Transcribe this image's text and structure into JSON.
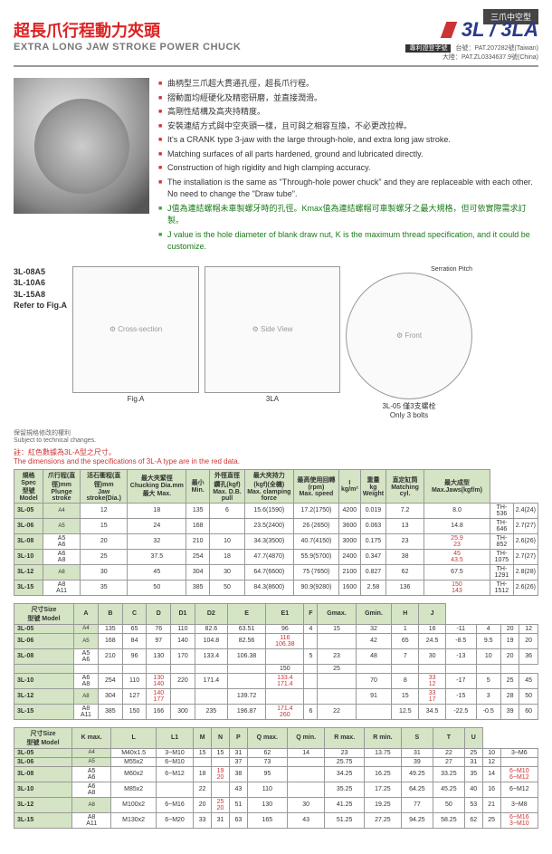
{
  "header": {
    "top_tag": "三爪中空型",
    "title_cn": "超長爪行程動力夾頭",
    "subtitle_en": "EXTRA LONG JAW STROKE POWER CHUCK",
    "model": "3L / 3LA",
    "patent_label": "專利證登字號",
    "patent_tw": "台號：PAT.207282號(Taiwan)",
    "patent_cn": "大陸：PAT.ZL0334637.9號(China)"
  },
  "features": {
    "cn": [
      "曲柄型三爪超大貫通孔徑，超長爪行程。",
      "摺動面均經硬化及精密研磨，並直接潤滑。",
      "高剛性結構及高夾持精度。",
      "安裝連結方式與中空夾頭一樣，且可與之相容互換，不必更改拉桿。"
    ],
    "en": [
      "It's a CRANK type 3-jaw with the large through-hole, and extra long jaw stroke.",
      "Matching surfaces of all parts hardened, ground and lubricated directly.",
      "Construction of high rigidity and high clamping accuracy.",
      "The installation is the same as \"Through-hole power chuck\" and they are replaceable with each other. No need to change the \"Draw tube\"."
    ],
    "green_cn": "J值為連結螺帽未車製螺牙時的孔徑。Kmax值為連結螺帽可車製螺牙之最大規格，但可依實際需求訂製。",
    "green_en": "J value is the hole diameter of blank draw nut, K is the maximum thread specification, and it could be customize."
  },
  "diagram": {
    "models": "3L-08A5\n3L-10A6\n3L-15A8\nRefer to Fig.A",
    "fig_a": "Fig.A",
    "label_3la": "3LA",
    "label_3l": "3L",
    "serration": "Serration Pitch",
    "serration_note": "齒距型1.5",
    "bolt_note": "3L-05 僅3支螺栓\nOnly 3 bolts",
    "tech_note": "保留規格修改的權利\nSubject to technical changes.",
    "red_note": "註：紅色數據為3L-A型之尺寸。\nThe dimensions and the specifications of 3L-A type are in the red data."
  },
  "table1": {
    "headers": [
      "規格 Spec\n型號 Model",
      "爪行程(直徑)mm\nPlunge stroke",
      "活石衝程(直徑)mm\nJaw stroke(Dia.)",
      "最大夾緊徑 Chucking Dia.mm\n最大 Max.",
      "最小 Min.",
      "外徑直徑鑽孔(kgf)\nMax. D.B. pull",
      "最大夾持力(kgf)(全機)\nMax. clamping force",
      "最高使用回轉(rpm)\nMax. speed",
      "I\nkg/m²",
      "重量 kg\nWeight",
      "直定缸筒\nMatching cyl.",
      "最大成型Max.Jaws(kgf/m)"
    ],
    "rows": [
      [
        "3L-05",
        "A4",
        "12",
        "18",
        "135",
        "6",
        "15.6(1590)",
        "17.2(1750)",
        "4200",
        "0.019",
        "7.2",
        "8.0",
        "TH-536",
        "2.4(24)"
      ],
      [
        "3L-06",
        "A5",
        "15",
        "24",
        "168",
        "",
        "23.5(2400)",
        "26 (2650)",
        "3600",
        "0.063",
        "13",
        "14.8",
        "TH-646",
        "2.7(27)"
      ],
      [
        "3L-08",
        "A5\nA6",
        "20",
        "32",
        "210",
        "10",
        "34.3(3500)",
        "40.7(4150)",
        "3000",
        "0.175",
        "23",
        "25.9\n23",
        "TH-852",
        "2.6(26)"
      ],
      [
        "3L-10",
        "A6\nA8",
        "25",
        "37.5",
        "254",
        "18",
        "47.7(4870)",
        "55.9(5700)",
        "2400",
        "0.347",
        "38",
        "45\n43.5",
        "TH-1075",
        "2.7(27)"
      ],
      [
        "3L-12",
        "A8",
        "30",
        "45",
        "304",
        "30",
        "64.7(6600)",
        "75 (7650)",
        "2100",
        "0.827",
        "62",
        "67.5",
        "TH-1291",
        "2.8(28)"
      ],
      [
        "3L-15",
        "A8\nA11",
        "35",
        "50",
        "385",
        "50",
        "84.3(8600)",
        "90.9(9280)",
        "1600",
        "2.58",
        "136",
        "150\n143",
        "TH-1512",
        "2.6(26)"
      ]
    ]
  },
  "table2": {
    "headers": [
      "尺寸Size\n型號 Model",
      "A",
      "B",
      "C",
      "D",
      "D1",
      "D2",
      "E",
      "E1",
      "F",
      "Gmax.",
      "Gmin.",
      "H",
      "J"
    ],
    "rows": [
      [
        "3L-05",
        "A4",
        "135",
        "65",
        "76",
        "110",
        "82.6",
        "63.51",
        "96",
        "4",
        "15",
        "32",
        "1",
        "16",
        "-11",
        "4",
        "20",
        "12"
      ],
      [
        "3L-06",
        "A5",
        "168",
        "84",
        "97",
        "140",
        "104.8",
        "82.56",
        "116\n106.38",
        "",
        "",
        "42",
        "65",
        "24.5",
        "-8.5",
        "9.5",
        "19",
        "20"
      ],
      [
        "3L-08",
        "A5\nA6",
        "210",
        "96",
        "130",
        "170",
        "133.4",
        "106.38",
        "",
        "5",
        "23",
        "48",
        "7",
        "30",
        "-13",
        "10",
        "20",
        "36"
      ],
      [
        "",
        "",
        "",
        "",
        "",
        "",
        "",
        "",
        "150",
        "",
        "25",
        "",
        "",
        "",
        "",
        "",
        ""
      ],
      [
        "3L-10",
        "A6\nA8",
        "254",
        "110",
        "130\n140",
        "220",
        "171.4",
        "",
        "133.4\n171.4",
        "",
        "",
        "70",
        "8",
        "33\n12",
        "-17",
        "5",
        "25",
        "45"
      ],
      [
        "3L-12",
        "A8",
        "304",
        "127",
        "140\n177",
        "",
        "",
        "139.72",
        "",
        "",
        "",
        "91",
        "15",
        "33\n17",
        "-15",
        "3",
        "28",
        "50"
      ],
      [
        "3L-15",
        "A8\nA11",
        "385",
        "150",
        "166",
        "300",
        "235",
        "196.87",
        "171.4\n260",
        "6",
        "22",
        "",
        "12.5",
        "34.5",
        "-22.5",
        "-0.5",
        "39",
        "60"
      ]
    ]
  },
  "table3": {
    "headers": [
      "尺寸Size\n型號 Model",
      "K max.",
      "L",
      "L1",
      "M",
      "N",
      "P",
      "Q max.",
      "Q min.",
      "R max.",
      "R min.",
      "S",
      "T",
      "U"
    ],
    "rows": [
      [
        "3L-05",
        "A4",
        "M40x1.5",
        "3~M10",
        "15",
        "15",
        "31",
        "62",
        "14",
        "23",
        "13.75",
        "31",
        "22",
        "25",
        "10",
        "3~M6"
      ],
      [
        "3L-06",
        "A5",
        "M55x2",
        "6~M10",
        "",
        "",
        "37",
        "73",
        "",
        "25.75",
        "",
        "39",
        "27",
        "31",
        "12",
        ""
      ],
      [
        "3L-08",
        "A5\nA6",
        "M60x2",
        "6~M12",
        "18",
        "19\n20",
        "38",
        "95",
        "",
        "34.25",
        "16.25",
        "49.25",
        "33.25",
        "35",
        "14",
        "6~M10\n6~M12"
      ],
      [
        "3L-10",
        "A6\nA8",
        "M85x2",
        "",
        "22",
        "",
        "43",
        "110",
        "",
        "35.25",
        "17.25",
        "64.25",
        "45.25",
        "40",
        "16",
        "6~M12"
      ],
      [
        "3L-12",
        "A8",
        "M100x2",
        "6~M16",
        "20",
        "25\n20",
        "51",
        "130",
        "30",
        "41.25",
        "19.25",
        "77",
        "50",
        "53",
        "21",
        "3~M8"
      ],
      [
        "3L-15",
        "A8\nA11",
        "M130x2",
        "6~M20",
        "33",
        "31",
        "63",
        "165",
        "43",
        "51.25",
        "27.25",
        "94.25",
        "58.25",
        "62",
        "25",
        "6~M16\n3~M10"
      ]
    ]
  }
}
